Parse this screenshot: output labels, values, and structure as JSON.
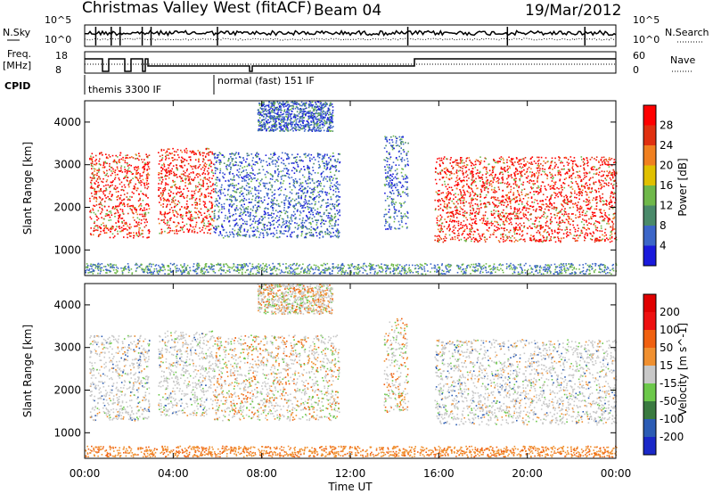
{
  "header": {
    "title": "Christmas Valley West (fitACF)",
    "beam": "Beam 04",
    "date": "19/Mar/2012"
  },
  "top_labels": {
    "nsky": "N.Sky",
    "nsky_hi": "10^5",
    "nsky_lo": "10^0",
    "freq_line1": "Freq.",
    "freq_line2": "[MHz]",
    "freq_hi": "18",
    "freq_lo": "8",
    "nsearch": "N.Search",
    "nsearch_hi": "10^5",
    "nsearch_lo": "10^0",
    "nave": "Nave",
    "nave_hi": "60",
    "nave_lo": "0",
    "cpid": "CPID",
    "cpid_mode1": "themis 3300 IF",
    "cpid_mode2": "normal (fast) 151 IF"
  },
  "chart_data": [
    {
      "type": "heatmap",
      "panel": "power",
      "ylabel": "Slant Range [km]",
      "xlabel": "",
      "x_ticks": [
        "00:00",
        "04:00",
        "08:00",
        "12:00",
        "16:00",
        "20:00",
        "00:00"
      ],
      "y_ticks": [
        1000,
        2000,
        3000,
        4000
      ],
      "ylim": [
        400,
        4500
      ],
      "xlim_hours": [
        0,
        24
      ],
      "colorbar": {
        "label": "Power [dB]",
        "ticks": [
          "4",
          "8",
          "12",
          "16",
          "20",
          "24",
          "28"
        ],
        "colors": [
          "#1a1adc",
          "#3c66c8",
          "#4a8a6a",
          "#6fb84a",
          "#e0c000",
          "#f08020",
          "#e03010",
          "#ff0000"
        ]
      },
      "features_hours": [
        {
          "t0": 0.2,
          "t1": 2.9,
          "range": [
            1300,
            3300
          ],
          "level": "high"
        },
        {
          "t0": 3.3,
          "t1": 5.8,
          "range": [
            1400,
            3400
          ],
          "level": "high"
        },
        {
          "t0": 5.8,
          "t1": 11.5,
          "range": [
            1300,
            3300
          ],
          "level": "low"
        },
        {
          "t0": 7.8,
          "t1": 11.2,
          "range": [
            3800,
            4500
          ],
          "level": "low"
        },
        {
          "t0": 13.5,
          "t1": 14.6,
          "range": [
            1500,
            3700
          ],
          "level": "low"
        },
        {
          "t0": 15.8,
          "t1": 24.0,
          "range": [
            1200,
            3200
          ],
          "level": "high"
        }
      ]
    },
    {
      "type": "heatmap",
      "panel": "velocity",
      "ylabel": "Slant Range [km]",
      "xlabel": "Time UT",
      "x_ticks": [
        "00:00",
        "04:00",
        "08:00",
        "12:00",
        "16:00",
        "20:00",
        "00:00"
      ],
      "y_ticks": [
        1000,
        2000,
        3000,
        4000
      ],
      "ylim": [
        400,
        4500
      ],
      "xlim_hours": [
        0,
        24
      ],
      "colorbar": {
        "label": "Velocity [m s^-1]",
        "ticks": [
          "200",
          "100",
          "50",
          "15",
          "-15",
          "-50",
          "-100",
          "-200"
        ],
        "colors": [
          "#1a28c8",
          "#2c5cb4",
          "#3a7a40",
          "#6cc84a",
          "#c8c8c8",
          "#f09030",
          "#f06010",
          "#ee1010",
          "#e00000"
        ]
      }
    }
  ]
}
